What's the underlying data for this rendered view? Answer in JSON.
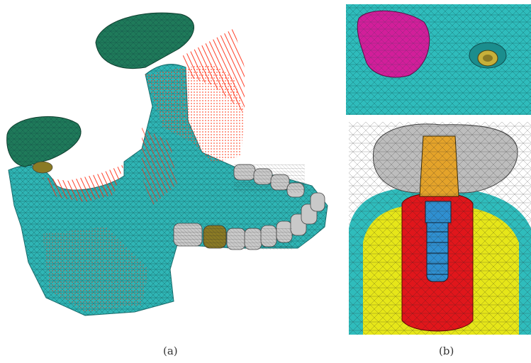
{
  "captions": {
    "a": "(a)",
    "b": "(b)"
  },
  "colors": {
    "bone_cortical": "#2fb5b5",
    "condyle": "#1f7a5a",
    "teeth": "#c9c9c9",
    "implant_crown": "#8a7a25",
    "muscle_vectors": "#ff2a10",
    "socket": "#d21e9a",
    "cancellous_bone": "#e6e619",
    "implant_body": "#e0161b",
    "abutment": "#e4a32a",
    "screw": "#2f8fd0",
    "crown": "#bdbdbd"
  },
  "icons": {
    "panel_a": "mandible-fe-mesh",
    "panel_b_top": "extraction-socket-mesh",
    "panel_b_bottom": "implant-crown-cross-section"
  }
}
